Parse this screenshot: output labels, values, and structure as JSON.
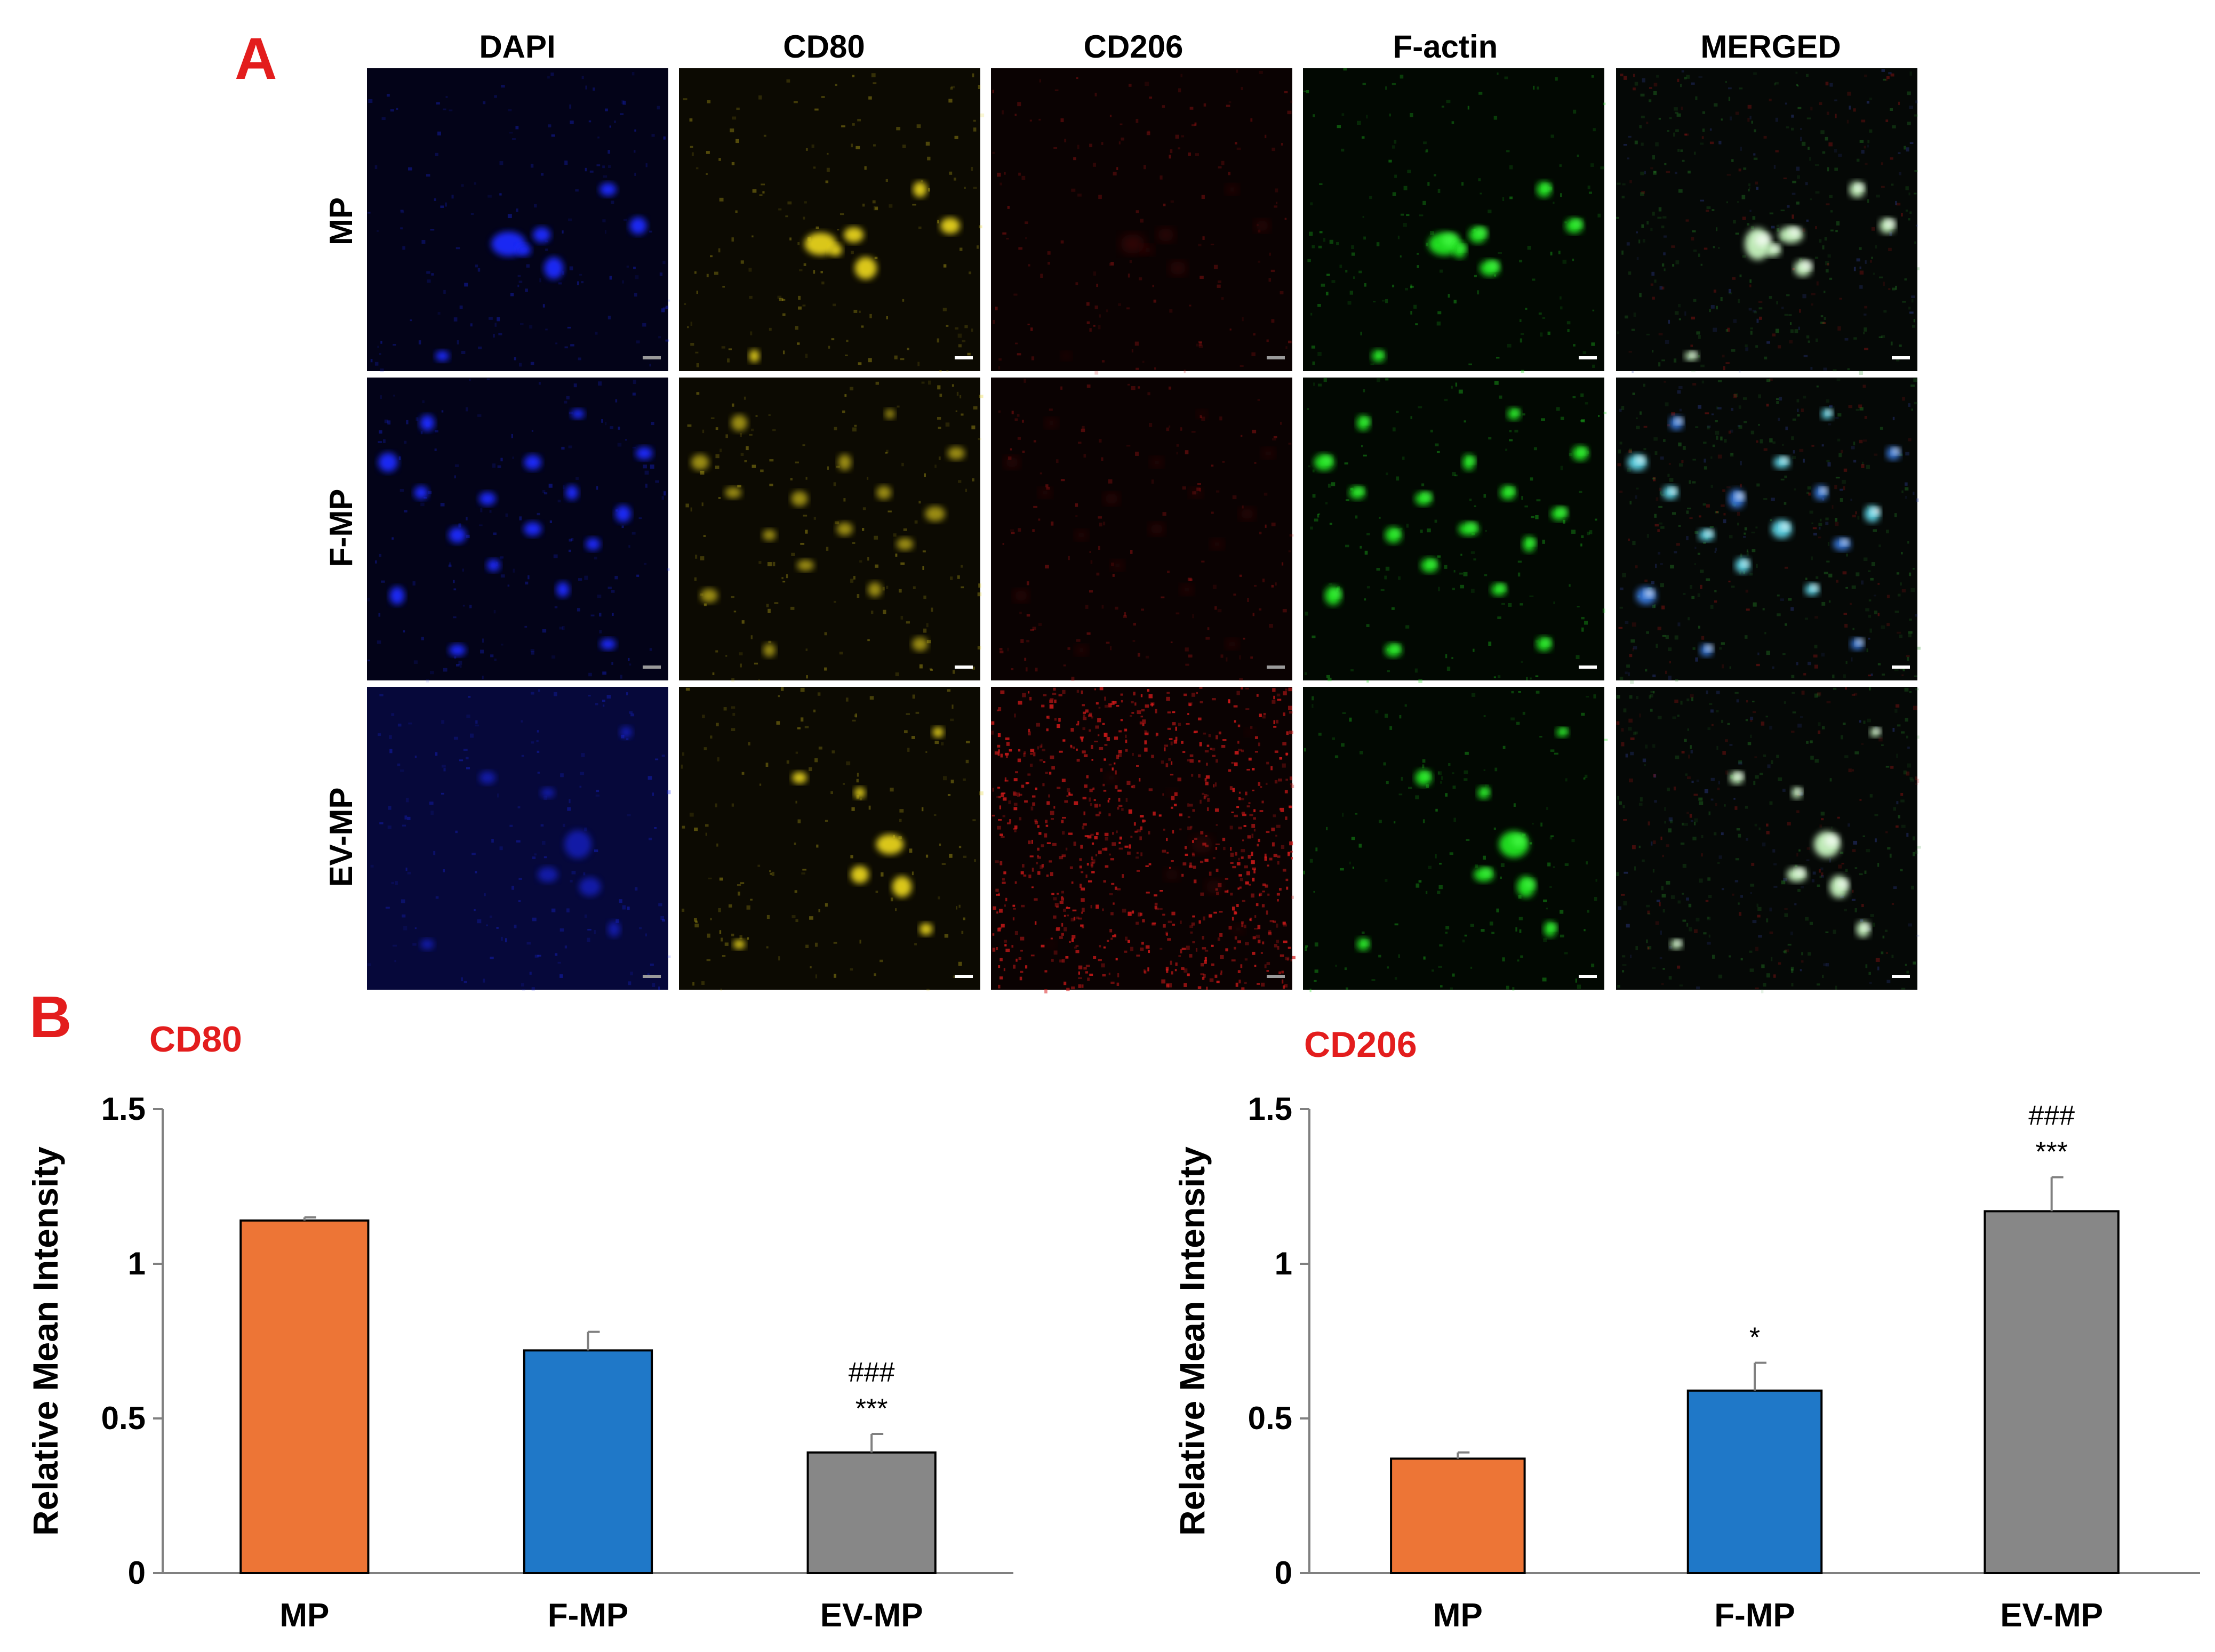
{
  "panel_a": {
    "label": "A",
    "columns": [
      "DAPI",
      "CD80",
      "CD206",
      "F-actin",
      "MERGED"
    ],
    "rows": [
      "MP",
      "F-MP",
      "EV-MP"
    ],
    "channel_colors": {
      "DAPI": "#1c2cff",
      "CD80": "#e6d21e",
      "CD206": "#d61a1a",
      "F-actin": "#22e622",
      "MERGED": "#8de8d8"
    }
  },
  "panel_b": {
    "label": "B"
  },
  "chart_data": [
    {
      "type": "bar",
      "title": "CD80",
      "ylabel": "Relative Mean Intensity",
      "xlabel": "",
      "categories": [
        "MP",
        "F-MP",
        "EV-MP"
      ],
      "values": [
        1.14,
        0.72,
        0.39
      ],
      "errors": [
        0.01,
        0.06,
        0.06
      ],
      "annotations": [
        {
          "category": "EV-MP",
          "lines": [
            "###",
            "***"
          ]
        }
      ],
      "colors": [
        "#ed7536",
        "#1f78c8",
        "#878787"
      ],
      "ylim": [
        0,
        1.5
      ],
      "yticks": [
        "0",
        "0.5",
        "1",
        "1.5"
      ],
      "ytick_values": [
        0,
        0.5,
        1,
        1.5
      ],
      "grid": false
    },
    {
      "type": "bar",
      "title": "CD206",
      "ylabel": "Relative Mean Intensity",
      "xlabel": "",
      "categories": [
        "MP",
        "F-MP",
        "EV-MP"
      ],
      "values": [
        0.37,
        0.59,
        1.17
      ],
      "errors": [
        0.02,
        0.09,
        0.11
      ],
      "annotations": [
        {
          "category": "F-MP",
          "lines": [
            "*"
          ]
        },
        {
          "category": "EV-MP",
          "lines": [
            "###",
            "***"
          ]
        }
      ],
      "colors": [
        "#ed7536",
        "#1f78c8",
        "#878787"
      ],
      "ylim": [
        0,
        1.5
      ],
      "yticks": [
        "0",
        "0.5",
        "1",
        "1.5"
      ],
      "ytick_values": [
        0,
        0.5,
        1,
        1.5
      ],
      "grid": false
    }
  ]
}
